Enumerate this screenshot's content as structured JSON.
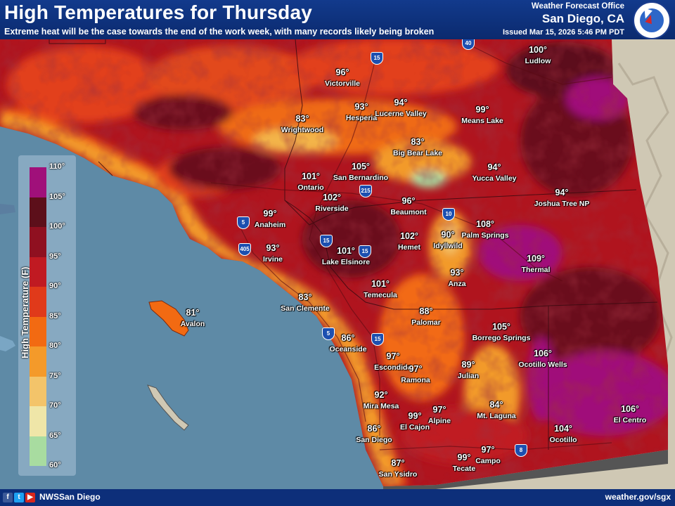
{
  "header": {
    "title": "High Temperatures for Thursday",
    "subtitle": "Extreme heat will be the case towards the end of the work week, with many records likely being broken",
    "office_line": "Weather Forecast Office",
    "office_city": "San Diego, CA",
    "issued": "Issued Mar 15, 2026 5:46 PM PDT",
    "logo_icon": "nws-logo-icon"
  },
  "footer": {
    "social_icons": [
      "facebook-icon",
      "twitter-icon",
      "youtube-icon"
    ],
    "handle": "NWSSan Diego",
    "website": "weather.gov/sgx"
  },
  "legend": {
    "title": "High Temperature (F)",
    "ticks": [
      "110°",
      "105°",
      "100°",
      "95°",
      "90°",
      "85°",
      "80°",
      "75°",
      "70°",
      "65°",
      "60°"
    ],
    "colors": [
      "#a0107a",
      "#5c0f1a",
      "#8f1020",
      "#c01a22",
      "#e03a1a",
      "#f26a12",
      "#f49a2a",
      "#f3c46a",
      "#efe6a8",
      "#a8dca0",
      "#5fc46a"
    ]
  },
  "highways": [
    "5",
    "405",
    "15",
    "215",
    "10",
    "15",
    "5",
    "15",
    "8",
    "40",
    "15"
  ],
  "points": [
    {
      "temp": "96°",
      "name": "Victorville"
    },
    {
      "temp": "93°",
      "name": "Hesperia"
    },
    {
      "temp": "94°",
      "name": "Lucerne Valley"
    },
    {
      "temp": "99°",
      "name": "Means Lake"
    },
    {
      "temp": "100°",
      "name": "Ludlow"
    },
    {
      "temp": "83°",
      "name": "Wrightwood"
    },
    {
      "temp": "83°",
      "name": "Big Bear Lake"
    },
    {
      "temp": "105°",
      "name": "San Bernardino"
    },
    {
      "temp": "101°",
      "name": "Ontario"
    },
    {
      "temp": "94°",
      "name": "Yucca Valley"
    },
    {
      "temp": "94°",
      "name": "Joshua Tree NP"
    },
    {
      "temp": "102°",
      "name": "Riverside"
    },
    {
      "temp": "96°",
      "name": "Beaumont"
    },
    {
      "temp": "99°",
      "name": "Anaheim"
    },
    {
      "temp": "108°",
      "name": "Palm Springs"
    },
    {
      "temp": "90°",
      "name": "Idyllwild"
    },
    {
      "temp": "102°",
      "name": "Hemet"
    },
    {
      "temp": "93°",
      "name": "Irvine"
    },
    {
      "temp": "101°",
      "name": "Lake Elsinore"
    },
    {
      "temp": "109°",
      "name": "Thermal"
    },
    {
      "temp": "93°",
      "name": "Anza"
    },
    {
      "temp": "101°",
      "name": "Temecula"
    },
    {
      "temp": "83°",
      "name": "San Clemente"
    },
    {
      "temp": "81°",
      "name": "Avalon"
    },
    {
      "temp": "88°",
      "name": "Palomar"
    },
    {
      "temp": "105°",
      "name": "Borrego Springs"
    },
    {
      "temp": "86°",
      "name": "Oceanside"
    },
    {
      "temp": "97°",
      "name": "Escondido"
    },
    {
      "temp": "97°",
      "name": "Ramona"
    },
    {
      "temp": "89°",
      "name": "Julian"
    },
    {
      "temp": "106°",
      "name": "Ocotillo Wells"
    },
    {
      "temp": "92°",
      "name": "Mira Mesa"
    },
    {
      "temp": "97°",
      "name": "Alpine"
    },
    {
      "temp": "99°",
      "name": "El Cajon"
    },
    {
      "temp": "84°",
      "name": "Mt. Laguna"
    },
    {
      "temp": "86°",
      "name": "San Diego"
    },
    {
      "temp": "106°",
      "name": "El Centro"
    },
    {
      "temp": "104°",
      "name": "Ocotillo"
    },
    {
      "temp": "97°",
      "name": "Campo"
    },
    {
      "temp": "99°",
      "name": "Tecate"
    },
    {
      "temp": "87°",
      "name": "San Ysidro"
    }
  ]
}
